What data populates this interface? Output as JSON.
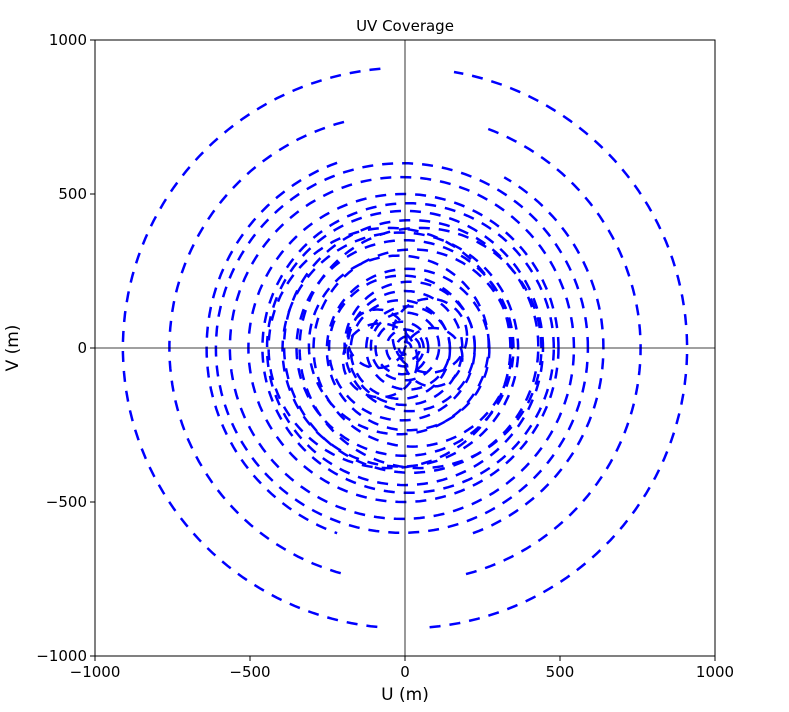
{
  "chart_data": {
    "type": "scatter",
    "title": "UV Coverage",
    "xlabel": "U (m)",
    "ylabel": "V (m)",
    "xlim": [
      -1000,
      1000
    ],
    "ylim": [
      -1000,
      1000
    ],
    "xticks": [
      "−1000",
      "−500",
      "0",
      "500",
      "1000"
    ],
    "yticks": [
      "−1000",
      "−500",
      "0",
      "500",
      "1000"
    ],
    "grid": false,
    "zero_lines": true,
    "marker": "dashed tracks",
    "color": "#0000ff",
    "tracks": [
      {
        "cx": 0,
        "cy": 0,
        "r": 910,
        "from": 95,
        "to": 265
      },
      {
        "cx": 0,
        "cy": 0,
        "r": 910,
        "from": 275,
        "to": 440
      },
      {
        "cx": 0,
        "cy": 0,
        "r": 760,
        "from": 105,
        "to": 255
      },
      {
        "cx": 0,
        "cy": 0,
        "r": 760,
        "from": 285,
        "to": 430
      },
      {
        "cx": 0,
        "cy": 0,
        "r": 640,
        "from": 110,
        "to": 250
      },
      {
        "cx": 0,
        "cy": 0,
        "r": 640,
        "from": 290,
        "to": 420
      },
      {
        "cx": -10,
        "cy": 0,
        "r": 600,
        "from": 0,
        "to": 360
      },
      {
        "cx": -10,
        "cy": 0,
        "r": 555,
        "from": 0,
        "to": 360
      },
      {
        "cx": -5,
        "cy": 0,
        "r": 500,
        "from": 0,
        "to": 360
      },
      {
        "cx": 10,
        "cy": 0,
        "r": 470,
        "from": 0,
        "to": 360
      },
      {
        "cx": 0,
        "cy": 0,
        "r": 445,
        "from": 0,
        "to": 360
      },
      {
        "cx": 20,
        "cy": 5,
        "r": 410,
        "from": 0,
        "to": 360
      },
      {
        "cx": -15,
        "cy": -5,
        "r": 380,
        "from": 0,
        "to": 360
      },
      {
        "cx": 0,
        "cy": 0,
        "r": 350,
        "from": 0,
        "to": 360
      },
      {
        "cx": 25,
        "cy": 0,
        "r": 320,
        "from": 0,
        "to": 360
      },
      {
        "cx": -20,
        "cy": 10,
        "r": 290,
        "from": 0,
        "to": 360
      },
      {
        "cx": 10,
        "cy": -5,
        "r": 262,
        "from": 0,
        "to": 360
      },
      {
        "cx": -10,
        "cy": 0,
        "r": 235,
        "from": 0,
        "to": 360
      },
      {
        "cx": 15,
        "cy": 5,
        "r": 210,
        "from": 0,
        "to": 360
      },
      {
        "cx": 0,
        "cy": 0,
        "r": 185,
        "from": 0,
        "to": 360
      },
      {
        "cx": -15,
        "cy": -5,
        "r": 160,
        "from": 0,
        "to": 360
      },
      {
        "cx": 10,
        "cy": 0,
        "r": 135,
        "from": 0,
        "to": 360
      },
      {
        "cx": 0,
        "cy": 5,
        "r": 110,
        "from": 0,
        "to": 360
      },
      {
        "cx": -10,
        "cy": 0,
        "r": 85,
        "from": 0,
        "to": 360
      },
      {
        "cx": 0,
        "cy": 0,
        "r": 60,
        "from": 0,
        "to": 360
      },
      {
        "cx": 10,
        "cy": 0,
        "r": 38,
        "from": 0,
        "to": 360
      },
      {
        "cx": 0,
        "cy": 0,
        "r": 20,
        "from": 0,
        "to": 360
      },
      {
        "cx": 80,
        "cy": 40,
        "r": 120,
        "from": 0,
        "to": 360
      },
      {
        "cx": -80,
        "cy": -40,
        "r": 120,
        "from": 0,
        "to": 360
      },
      {
        "cx": 90,
        "cy": -30,
        "r": 95,
        "from": 0,
        "to": 360
      },
      {
        "cx": -90,
        "cy": 30,
        "r": 95,
        "from": 0,
        "to": 360
      },
      {
        "cx": 50,
        "cy": 0,
        "r": 390,
        "from": 0,
        "to": 360
      },
      {
        "cx": -50,
        "cy": 0,
        "r": 390,
        "from": 0,
        "to": 360
      }
    ]
  }
}
